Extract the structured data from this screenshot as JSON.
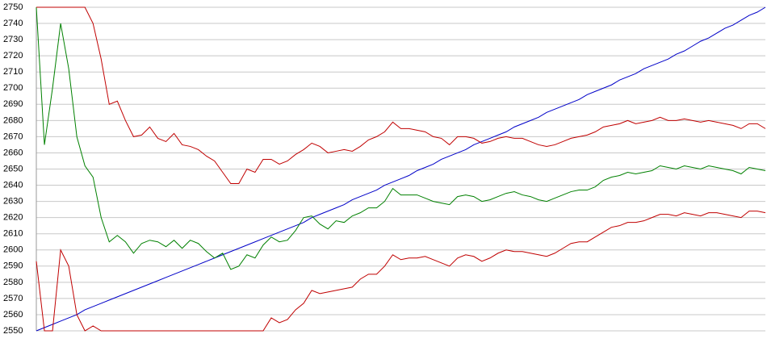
{
  "chart_data": {
    "type": "line",
    "ylim": [
      2550,
      2750
    ],
    "yticks": [
      2550,
      2560,
      2570,
      2580,
      2590,
      2600,
      2610,
      2620,
      2630,
      2640,
      2650,
      2660,
      2670,
      2680,
      2690,
      2700,
      2710,
      2720,
      2730,
      2740,
      2750
    ],
    "grid": true,
    "series": [
      {
        "color": "#0000c8",
        "values": [
          2550,
          2552,
          2554,
          2556,
          2558,
          2560,
          2563,
          2565,
          2567,
          2569,
          2571,
          2573,
          2575,
          2577,
          2579,
          2581,
          2583,
          2585,
          2587,
          2589,
          2591,
          2593,
          2595,
          2597,
          2599,
          2601,
          2603,
          2605,
          2607,
          2609,
          2611,
          2613,
          2615,
          2617,
          2620,
          2622,
          2624,
          2626,
          2628,
          2631,
          2633,
          2635,
          2637,
          2640,
          2642,
          2644,
          2646,
          2649,
          2651,
          2653,
          2656,
          2658,
          2660,
          2662,
          2665,
          2667,
          2669,
          2671,
          2673,
          2676,
          2678,
          2680,
          2682,
          2685,
          2687,
          2689,
          2691,
          2693,
          2696,
          2698,
          2700,
          2702,
          2705,
          2707,
          2709,
          2712,
          2714,
          2716,
          2718,
          2721,
          2723,
          2726,
          2729,
          2731,
          2734,
          2737,
          2739,
          2742,
          2745,
          2747,
          2750
        ]
      },
      {
        "color": "#008000",
        "values": [
          2750,
          2665,
          2700,
          2740,
          2712,
          2670,
          2652,
          2645,
          2620,
          2605,
          2609,
          2605,
          2598,
          2604,
          2606,
          2605,
          2602,
          2606,
          2601,
          2606,
          2604,
          2599,
          2595,
          2598,
          2588,
          2590,
          2597,
          2595,
          2603,
          2608,
          2605,
          2606,
          2612,
          2620,
          2621,
          2616,
          2613,
          2618,
          2617,
          2621,
          2623,
          2626,
          2626,
          2630,
          2638,
          2634,
          2634,
          2634,
          2632,
          2630,
          2629,
          2628,
          2633,
          2634,
          2633,
          2630,
          2631,
          2633,
          2635,
          2636,
          2634,
          2633,
          2631,
          2630,
          2632,
          2634,
          2636,
          2637,
          2637,
          2639,
          2643,
          2645,
          2646,
          2648,
          2647,
          2648,
          2649,
          2652,
          2651,
          2650,
          2652,
          2651,
          2650,
          2652,
          2651,
          2650,
          2649,
          2647,
          2651,
          2650,
          2649
        ]
      },
      {
        "color": "#c00000",
        "values": [
          2750,
          2750,
          2750,
          2750,
          2750,
          2750,
          2750,
          2740,
          2718,
          2690,
          2692,
          2680,
          2670,
          2671,
          2676,
          2669,
          2667,
          2672,
          2665,
          2664,
          2662,
          2658,
          2655,
          2648,
          2641,
          2641,
          2650,
          2648,
          2656,
          2656,
          2653,
          2655,
          2659,
          2662,
          2666,
          2664,
          2660,
          2661,
          2662,
          2661,
          2664,
          2668,
          2670,
          2673,
          2679,
          2675,
          2675,
          2674,
          2673,
          2670,
          2669,
          2665,
          2670,
          2670,
          2669,
          2666,
          2667,
          2669,
          2670,
          2669,
          2669,
          2667,
          2665,
          2664,
          2665,
          2667,
          2669,
          2670,
          2671,
          2673,
          2676,
          2677,
          2678,
          2680,
          2678,
          2679,
          2680,
          2682,
          2680,
          2680,
          2681,
          2680,
          2679,
          2680,
          2679,
          2678,
          2677,
          2675,
          2678,
          2678,
          2675
        ]
      },
      {
        "color": "#c00000",
        "values": [
          2593,
          2550,
          2550,
          2600,
          2590,
          2560,
          2550,
          2553,
          2550,
          2550,
          2550,
          2550,
          2550,
          2550,
          2550,
          2550,
          2550,
          2550,
          2550,
          2550,
          2550,
          2550,
          2550,
          2550,
          2550,
          2550,
          2550,
          2550,
          2550,
          2558,
          2555,
          2557,
          2563,
          2567,
          2575,
          2573,
          2574,
          2575,
          2576,
          2577,
          2582,
          2585,
          2585,
          2590,
          2597,
          2594,
          2595,
          2595,
          2596,
          2594,
          2592,
          2590,
          2595,
          2597,
          2596,
          2593,
          2595,
          2598,
          2600,
          2599,
          2599,
          2598,
          2597,
          2596,
          2598,
          2601,
          2604,
          2605,
          2605,
          2608,
          2611,
          2614,
          2615,
          2617,
          2617,
          2618,
          2620,
          2622,
          2622,
          2621,
          2623,
          2622,
          2621,
          2623,
          2623,
          2622,
          2621,
          2620,
          2624,
          2624,
          2623
        ]
      }
    ]
  }
}
